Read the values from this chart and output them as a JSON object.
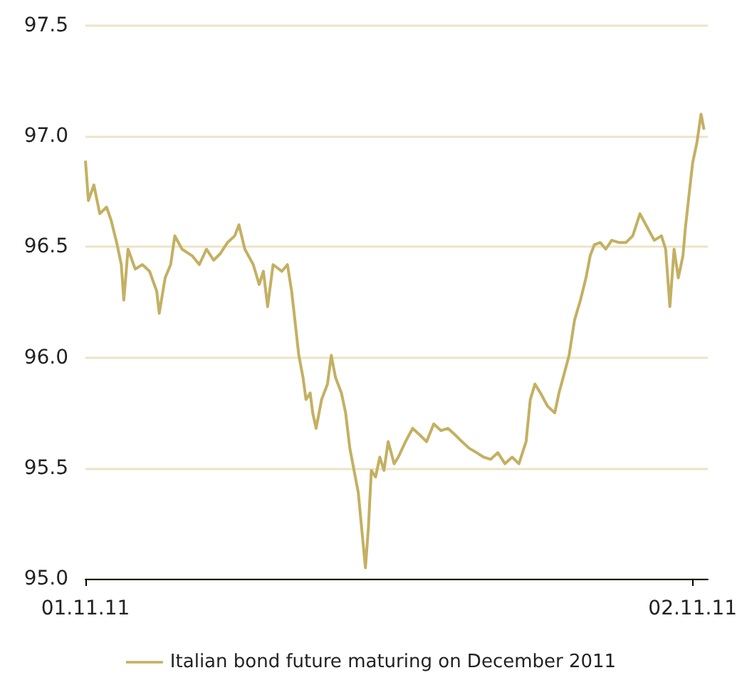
{
  "chart_data": {
    "type": "line",
    "xlim": [
      "2011-11-01T00:00",
      "2011-11-02T00:36"
    ],
    "xticks": [
      {
        "value": "2011-11-01",
        "label": "01.11.11"
      },
      {
        "value": "2011-11-02",
        "label": "02.11.11"
      }
    ],
    "ylim": [
      95.0,
      97.5
    ],
    "yticks": [
      {
        "value": 95,
        "label": "95.0"
      },
      {
        "value": 95.5,
        "label": "95.5"
      },
      {
        "value": 96,
        "label": "96.0"
      },
      {
        "value": 96.5,
        "label": "96.5"
      },
      {
        "value": 97,
        "label": "97.0"
      },
      {
        "value": 97.5,
        "label": "97.5"
      }
    ],
    "grid": "y",
    "legend": "bottom",
    "marker": "none",
    "line_style": "solid",
    "series": [
      {
        "name": "Italian bond future maturing on December 2011",
        "color": "#c4b062",
        "x": [
          "2011-11-01T00:00",
          "2011-11-01T00:07",
          "2011-11-01T00:20",
          "2011-11-01T00:34",
          "2011-11-01T00:50",
          "2011-11-01T01:01",
          "2011-11-01T01:14",
          "2011-11-01T01:25",
          "2011-11-01T01:31",
          "2011-11-01T01:41",
          "2011-11-01T01:58",
          "2011-11-01T02:15",
          "2011-11-01T02:32",
          "2011-11-01T02:49",
          "2011-11-01T02:55",
          "2011-11-01T03:09",
          "2011-11-01T03:22",
          "2011-11-01T03:32",
          "2011-11-01T03:49",
          "2011-11-01T04:13",
          "2011-11-01T04:30",
          "2011-11-01T04:47",
          "2011-11-01T05:04",
          "2011-11-01T05:20",
          "2011-11-01T05:37",
          "2011-11-01T05:54",
          "2011-11-01T06:04",
          "2011-11-01T06:18",
          "2011-11-01T06:38",
          "2011-11-01T06:52",
          "2011-11-01T07:02",
          "2011-11-01T07:12",
          "2011-11-01T07:25",
          "2011-11-01T07:46",
          "2011-11-01T07:59",
          "2011-11-01T08:09",
          "2011-11-01T08:19",
          "2011-11-01T08:26",
          "2011-11-01T08:36",
          "2011-11-01T08:43",
          "2011-11-01T08:53",
          "2011-11-01T08:59",
          "2011-11-01T09:07",
          "2011-11-01T09:20",
          "2011-11-01T09:34",
          "2011-11-01T09:43",
          "2011-11-01T09:53",
          "2011-11-01T10:07",
          "2011-11-01T10:17",
          "2011-11-01T10:27",
          "2011-11-01T10:37",
          "2011-11-01T10:47",
          "2011-11-01T10:58",
          "2011-11-01T11:04",
          "2011-11-01T11:11",
          "2011-11-01T11:18",
          "2011-11-01T11:28",
          "2011-11-01T11:38",
          "2011-11-01T11:48",
          "2011-11-01T11:58",
          "2011-11-01T12:12",
          "2011-11-01T12:22",
          "2011-11-01T12:39",
          "2011-11-01T12:56",
          "2011-11-01T13:13",
          "2011-11-01T13:29",
          "2011-11-01T13:46",
          "2011-11-01T14:03",
          "2011-11-01T14:20",
          "2011-11-01T14:37",
          "2011-11-01T14:53",
          "2011-11-01T15:10",
          "2011-11-01T15:28",
          "2011-11-01T15:44",
          "2011-11-01T16:01",
          "2011-11-01T16:18",
          "2011-11-01T16:35",
          "2011-11-01T16:52",
          "2011-11-01T17:08",
          "2011-11-01T17:25",
          "2011-11-01T17:35",
          "2011-11-01T17:46",
          "2011-11-01T17:59",
          "2011-11-01T18:16",
          "2011-11-01T18:33",
          "2011-11-01T18:43",
          "2011-11-01T18:53",
          "2011-11-01T19:07",
          "2011-11-01T19:20",
          "2011-11-01T19:34",
          "2011-11-01T19:47",
          "2011-11-01T19:57",
          "2011-11-01T20:07",
          "2011-11-01T20:21",
          "2011-11-01T20:34",
          "2011-11-01T20:48",
          "2011-11-01T21:05",
          "2011-11-01T21:22",
          "2011-11-01T21:38",
          "2011-11-01T21:55",
          "2011-11-01T22:12",
          "2011-11-01T22:29",
          "2011-11-01T22:46",
          "2011-11-01T22:56",
          "2011-11-01T23:06",
          "2011-11-01T23:16",
          "2011-11-01T23:26",
          "2011-11-01T23:37",
          "2011-11-01T23:43",
          "2011-11-01T23:50",
          "2011-11-02T00:00",
          "2011-11-02T00:10",
          "2011-11-02T00:20",
          "2011-11-02T00:27"
        ],
        "values": [
          96.89,
          96.71,
          96.78,
          96.65,
          96.68,
          96.62,
          96.52,
          96.42,
          96.26,
          96.49,
          96.4,
          96.42,
          96.39,
          96.3,
          96.2,
          96.36,
          96.42,
          96.55,
          96.49,
          96.46,
          96.42,
          96.49,
          96.44,
          96.47,
          96.52,
          96.55,
          96.6,
          96.49,
          96.42,
          96.33,
          96.39,
          96.23,
          96.42,
          96.39,
          96.42,
          96.3,
          96.13,
          96.01,
          95.91,
          95.81,
          95.84,
          95.75,
          95.68,
          95.81,
          95.88,
          96.01,
          95.91,
          95.84,
          95.75,
          95.59,
          95.49,
          95.39,
          95.17,
          95.05,
          95.23,
          95.49,
          95.46,
          95.55,
          95.49,
          95.62,
          95.52,
          95.55,
          95.62,
          95.68,
          95.65,
          95.62,
          95.7,
          95.67,
          95.68,
          95.65,
          95.62,
          95.59,
          95.57,
          95.55,
          95.54,
          95.57,
          95.52,
          95.55,
          95.52,
          95.62,
          95.81,
          95.88,
          95.84,
          95.78,
          95.75,
          95.84,
          95.91,
          96.01,
          96.17,
          96.26,
          96.36,
          96.46,
          96.51,
          96.52,
          96.49,
          96.53,
          96.52,
          96.52,
          96.55,
          96.65,
          96.59,
          96.53,
          96.55,
          96.49,
          96.23,
          96.49,
          96.36,
          96.46,
          96.59,
          96.71,
          96.88,
          96.97,
          97.1,
          97.03
        ]
      }
    ]
  }
}
